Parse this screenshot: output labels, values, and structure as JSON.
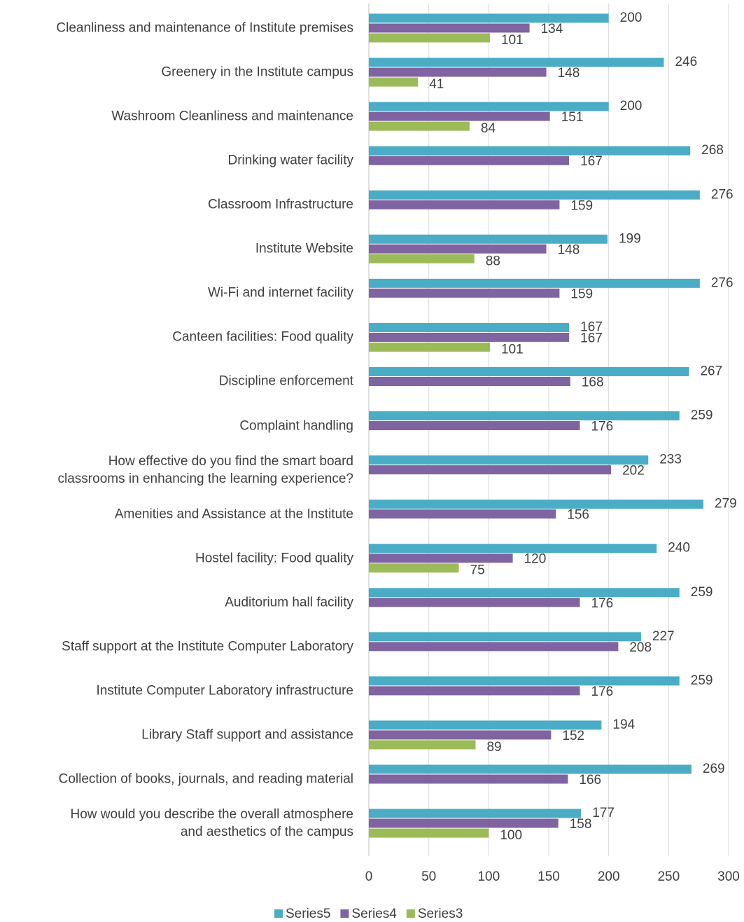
{
  "chart_data": {
    "type": "bar",
    "orientation": "horizontal",
    "categories": [
      "Cleanliness and maintenance of Institute premises",
      "Greenery in the Institute campus",
      "Washroom Cleanliness and maintenance",
      "Drinking water facility",
      "Classroom Infrastructure",
      "Institute Website",
      "Wi-Fi and internet facility",
      "Canteen facilities:   Food quality",
      "Discipline enforcement",
      "Complaint handling",
      "How effective do you find the smart board\nclassrooms in enhancing the learning experience?",
      "Amenities and Assistance at the Institute",
      "Hostel facility: Food quality",
      "Auditorium hall facility",
      "Staff support at the Institute Computer Laboratory",
      "Institute Computer Laboratory infrastructure",
      "Library Staff support and assistance",
      "Collection of books, journals, and reading material",
      "How would you describe the overall atmosphere\nand aesthetics of the campus"
    ],
    "series": [
      {
        "name": "Series5",
        "color": "#4bacc6",
        "values": [
          200,
          246,
          200,
          268,
          276,
          199,
          276,
          167,
          267,
          259,
          233,
          279,
          240,
          259,
          227,
          259,
          194,
          269,
          177
        ]
      },
      {
        "name": "Series4",
        "color": "#8064a2",
        "values": [
          134,
          148,
          151,
          167,
          159,
          148,
          159,
          167,
          168,
          176,
          202,
          156,
          120,
          176,
          208,
          176,
          152,
          166,
          158
        ]
      },
      {
        "name": "Series3",
        "color": "#9bbb59",
        "values": [
          101,
          41,
          84,
          null,
          null,
          88,
          null,
          101,
          null,
          null,
          null,
          null,
          75,
          null,
          null,
          null,
          89,
          null,
          100
        ]
      }
    ],
    "xlim": [
      0,
      300
    ],
    "xticks": [
      0,
      50,
      100,
      150,
      200,
      250,
      300
    ],
    "grid": true,
    "legend": "bottom"
  }
}
